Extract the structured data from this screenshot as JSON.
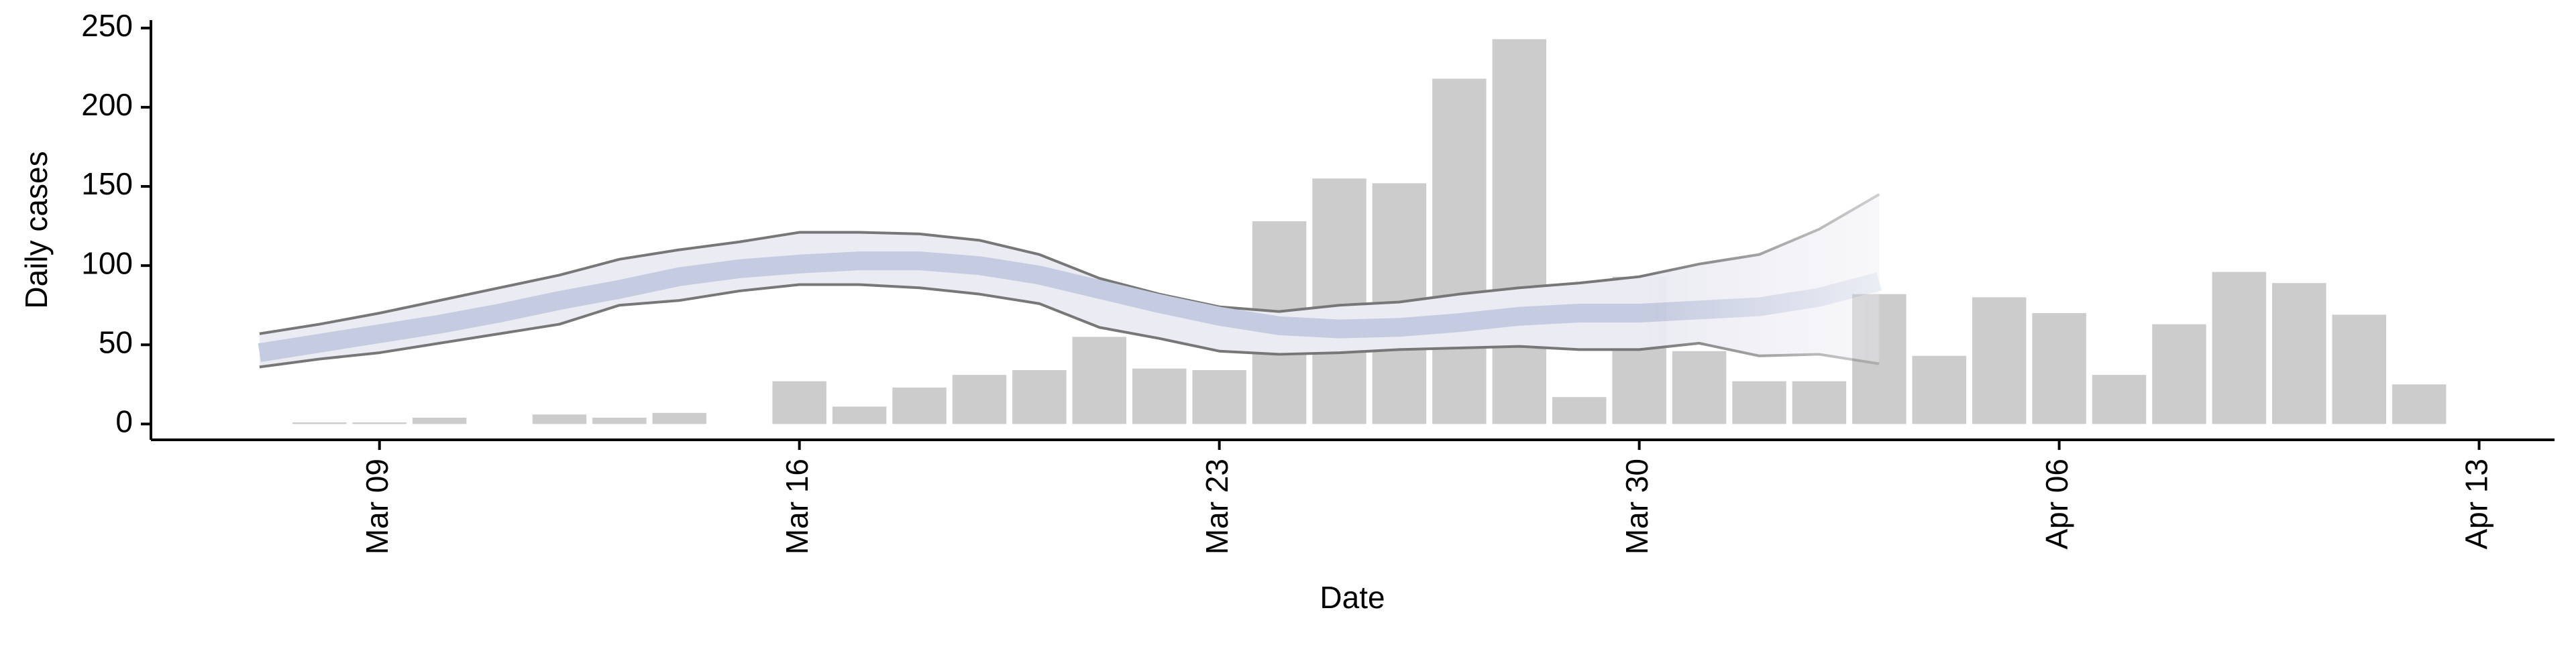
{
  "chart_data": {
    "type": "bar",
    "x_label": "Date",
    "y_label": "Daily cases",
    "x": [
      "Mar 08",
      "Mar 09",
      "Mar 10",
      "Mar 11",
      "Mar 12",
      "Mar 13",
      "Mar 14",
      "Mar 15",
      "Mar 16",
      "Mar 17",
      "Mar 18",
      "Mar 19",
      "Mar 20",
      "Mar 21",
      "Mar 22",
      "Mar 23",
      "Mar 24",
      "Mar 25",
      "Mar 26",
      "Mar 27",
      "Mar 28",
      "Mar 29",
      "Mar 30",
      "Mar 31",
      "Apr 01",
      "Apr 02",
      "Apr 03",
      "Apr 04",
      "Apr 05",
      "Apr 06",
      "Apr 07",
      "Apr 08",
      "Apr 09",
      "Apr 10",
      "Apr 11",
      "Apr 12"
    ],
    "values": [
      1,
      1,
      4,
      0,
      6,
      4,
      7,
      0,
      27,
      11,
      23,
      31,
      34,
      55,
      35,
      34,
      128,
      155,
      152,
      218,
      243,
      17,
      93,
      46,
      27,
      27,
      82,
      43,
      80,
      70,
      31,
      63,
      96,
      89,
      69,
      25
    ],
    "color": "#cccccc",
    "estimate": {
      "type": "line",
      "x": [
        "Mar 07",
        "Mar 08",
        "Mar 09",
        "Mar 10",
        "Mar 11",
        "Mar 12",
        "Mar 13",
        "Mar 14",
        "Mar 15",
        "Mar 16",
        "Mar 17",
        "Mar 18",
        "Mar 19",
        "Mar 20",
        "Mar 21",
        "Mar 22",
        "Mar 23",
        "Mar 24",
        "Mar 25",
        "Mar 26",
        "Mar 27",
        "Mar 28",
        "Mar 29",
        "Mar 30",
        "Mar 31",
        "Apr 01",
        "Apr 02",
        "Apr 03"
      ],
      "series": [
        {
          "color": "#777777",
          "values": [
            57,
            63,
            70,
            78,
            86,
            94,
            104,
            110,
            115,
            121,
            121,
            120,
            116,
            107,
            92,
            82,
            74,
            71,
            75,
            77,
            82,
            86,
            89,
            93,
            101,
            107,
            123,
            145
          ]
        },
        {
          "color": "#777777",
          "values": [
            36,
            41,
            45,
            51,
            57,
            63,
            75,
            78,
            84,
            88,
            88,
            86,
            82,
            76,
            61,
            54,
            46,
            44,
            45,
            47,
            48,
            49,
            47,
            47,
            51,
            43,
            44,
            38
          ]
        },
        {
          "color": "#c5cbe0",
          "values": [
            45,
            51,
            57,
            63,
            70,
            78,
            85,
            93,
            98,
            101,
            103,
            103,
            100,
            94,
            85,
            76,
            68,
            62,
            60,
            61,
            64,
            68,
            70,
            70,
            72,
            74,
            80,
            90
          ]
        }
      ],
      "band_color": "#ebebf3"
    },
    "xlim": [
      "Mar 05",
      "Apr 14"
    ],
    "xticks": [
      "Mar 09",
      "Mar 16",
      "Mar 23",
      "Mar 30",
      "Apr 06",
      "Apr 13"
    ],
    "ylim": [
      -10,
      255
    ],
    "yticks": [
      0,
      50,
      100,
      150,
      200,
      250
    ]
  }
}
